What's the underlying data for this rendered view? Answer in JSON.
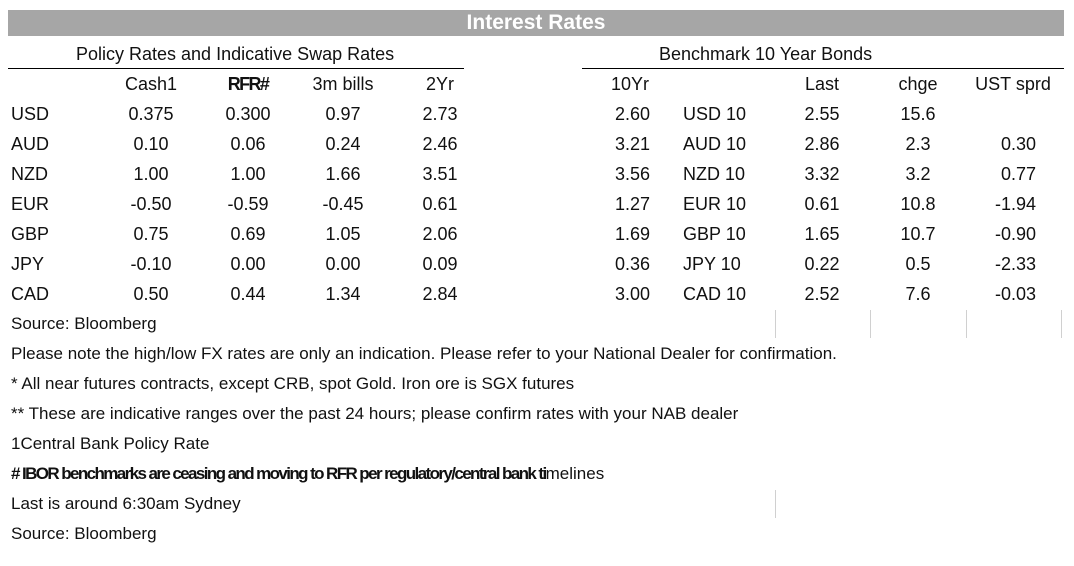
{
  "title": "Interest Rates",
  "left_section": "Policy Rates and Indicative Swap Rates",
  "right_section": "Benchmark 10 Year Bonds",
  "headers": {
    "cash": "Cash1",
    "rfr": "RFR#",
    "bills": "3m bills",
    "twoyr": "2Yr",
    "tenyr": "10Yr",
    "last": "Last",
    "chge": "chge",
    "ust": "UST sprd"
  },
  "rows": [
    {
      "ccy": "USD",
      "cash": "0.375",
      "rfr": "0.300",
      "bills": "0.97",
      "twoyr": "2.73",
      "tenyr": "2.60",
      "bond": "USD 10",
      "last": "2.55",
      "chge": "15.6",
      "ust": ""
    },
    {
      "ccy": "AUD",
      "cash": "0.10",
      "rfr": "0.06",
      "bills": "0.24",
      "twoyr": "2.46",
      "tenyr": "3.21",
      "bond": "AUD 10",
      "last": "2.86",
      "chge": "2.3",
      "ust": "0.30"
    },
    {
      "ccy": "NZD",
      "cash": "1.00",
      "rfr": "1.00",
      "bills": "1.66",
      "twoyr": "3.51",
      "tenyr": "3.56",
      "bond": "NZD 10",
      "last": "3.32",
      "chge": "3.2",
      "ust": "0.77"
    },
    {
      "ccy": "EUR",
      "cash": "-0.50",
      "rfr": "-0.59",
      "bills": "-0.45",
      "twoyr": "0.61",
      "tenyr": "1.27",
      "bond": "EUR 10",
      "last": "0.61",
      "chge": "10.8",
      "ust": "-1.94"
    },
    {
      "ccy": "GBP",
      "cash": "0.75",
      "rfr": "0.69",
      "bills": "1.05",
      "twoyr": "2.06",
      "tenyr": "1.69",
      "bond": "GBP 10",
      "last": "1.65",
      "chge": "10.7",
      "ust": "-0.90"
    },
    {
      "ccy": "JPY",
      "cash": "-0.10",
      "rfr": "0.00",
      "bills": "0.00",
      "twoyr": "0.09",
      "tenyr": "0.36",
      "bond": "JPY 10",
      "last": "0.22",
      "chge": "0.5",
      "ust": "-2.33"
    },
    {
      "ccy": "CAD",
      "cash": "0.50",
      "rfr": "0.44",
      "bills": "1.34",
      "twoyr": "2.84",
      "tenyr": "3.00",
      "bond": "CAD 10",
      "last": "2.52",
      "chge": "7.6",
      "ust": "-0.03"
    }
  ],
  "notes": {
    "source1": "Source: Bloomberg",
    "fx_note": "Please note the high/low FX rates are only an indication. Please refer to your National Dealer for confirmation.",
    "futures_note": "* All near futures contracts, except CRB, spot Gold.  Iron ore is SGX futures",
    "ranges_note": "** These are indicative ranges over the past 24 hours; please confirm rates with your NAB dealer",
    "policy_note": "1Central Bank Policy Rate",
    "ibor_note_bold": "# IBOR benchmarks are ceasing and moving to RFR per regulatory/central bank ti",
    "ibor_note_rest": "melines",
    "last_note": "Last is around 6:30am Sydney",
    "source2": "Source: Bloomberg"
  }
}
